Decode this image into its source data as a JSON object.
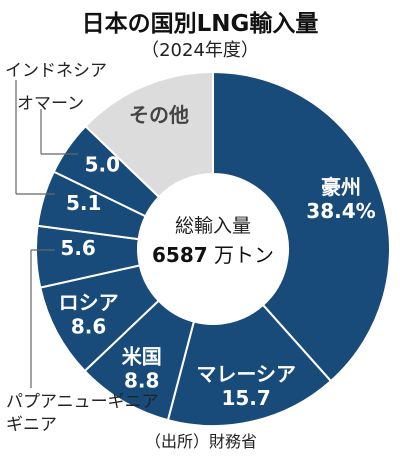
{
  "header": {
    "title": "日本の国別LNG輸入量",
    "subtitle": "（2024年度）"
  },
  "footer": {
    "source": "（出所）財務省"
  },
  "colors": {
    "primary": "#184b7a",
    "other": "#dcdcdc",
    "text_on_primary": "#ffffff",
    "text_on_other": "#444444",
    "leader": "#666666"
  },
  "chart_data": {
    "type": "pie",
    "title": "日本の国別LNG輸入量",
    "subtitle": "（2024年度）",
    "unit": "%",
    "center_label": "総輸入量",
    "center_value_number": "6587",
    "center_value_unit": "万トン",
    "slices": [
      {
        "name": "豪州",
        "value": 38.4,
        "label_value": "38.4%"
      },
      {
        "name": "マレーシア",
        "value": 15.7,
        "label_value": "15.7"
      },
      {
        "name": "米国",
        "value": 8.8,
        "label_value": "8.8"
      },
      {
        "name": "ロシア",
        "value": 8.6,
        "label_value": "8.6"
      },
      {
        "name": "パプアニューギニア",
        "value": 5.6,
        "label_value": "5.6"
      },
      {
        "name": "インドネシア",
        "value": 5.1,
        "label_value": "5.1"
      },
      {
        "name": "オマーン",
        "value": 5.0,
        "label_value": "5.0"
      },
      {
        "name": "その他",
        "value": 12.8,
        "label_value": ""
      }
    ],
    "outside_labels": {
      "papua_line1": "パプアニューギニア",
      "papua_line2": "ギニア",
      "indonesia": "インドネシア",
      "oman": "オマーン"
    }
  }
}
